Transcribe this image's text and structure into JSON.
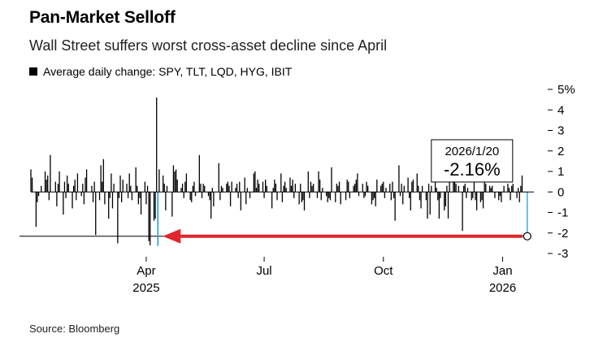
{
  "header": {
    "title": "Pan-Market Selloff",
    "subtitle": "Wall Street suffers worst cross-asset decline since April",
    "legend_label": "Average daily change: SPY, TLT, LQD, HYG, IBIT"
  },
  "footer": {
    "source": "Bloomberg"
  },
  "colors": {
    "bars": "#000000",
    "highlight": "#1e9bd7",
    "arrow": "#e0262b",
    "zero_line": "#000000"
  },
  "chart_data": {
    "type": "bar",
    "ylim": [
      -3,
      5
    ],
    "y_ticks": [
      5,
      4,
      3,
      2,
      1,
      0,
      -1,
      -2,
      -3
    ],
    "y_tick_labels": [
      "5%",
      "4",
      "3",
      "2",
      "1",
      "0",
      "-1",
      "-2",
      "-3"
    ],
    "x_range": [
      "2025-01-02",
      "2026-01-22"
    ],
    "x_ticks": [
      {
        "date": "2025-04-01",
        "label": "Apr",
        "sublabel": "2025"
      },
      {
        "date": "2025-07-01",
        "label": "Jul",
        "sublabel": ""
      },
      {
        "date": "2025-10-01",
        "label": "Oct",
        "sublabel": ""
      },
      {
        "date": "2026-01-01",
        "label": "Jan",
        "sublabel": "2026"
      }
    ],
    "bars": [
      {
        "date": "2025-01-02",
        "value": 1.1
      },
      {
        "date": "2025-01-03",
        "value": 0.7
      },
      {
        "date": "2025-01-06",
        "value": -1.7
      },
      {
        "date": "2025-01-07",
        "value": -0.5
      },
      {
        "date": "2025-01-08",
        "value": -0.2
      },
      {
        "date": "2025-01-10",
        "value": 0.3
      },
      {
        "date": "2025-01-13",
        "value": 1.0
      },
      {
        "date": "2025-01-14",
        "value": 0.6
      },
      {
        "date": "2025-01-15",
        "value": 0.8
      },
      {
        "date": "2025-01-16",
        "value": -0.4
      },
      {
        "date": "2025-01-17",
        "value": 1.8
      },
      {
        "date": "2025-01-21",
        "value": 0.5
      },
      {
        "date": "2025-01-22",
        "value": -0.7
      },
      {
        "date": "2025-01-23",
        "value": 0.4
      },
      {
        "date": "2025-01-24",
        "value": 1.0
      },
      {
        "date": "2025-01-27",
        "value": -1.1
      },
      {
        "date": "2025-01-28",
        "value": 0.5
      },
      {
        "date": "2025-01-29",
        "value": -0.3
      },
      {
        "date": "2025-01-30",
        "value": 0.8
      },
      {
        "date": "2025-01-31",
        "value": 0.4
      },
      {
        "date": "2025-02-03",
        "value": -0.8
      },
      {
        "date": "2025-02-04",
        "value": 0.3
      },
      {
        "date": "2025-02-05",
        "value": 0.6
      },
      {
        "date": "2025-02-06",
        "value": -0.4
      },
      {
        "date": "2025-02-07",
        "value": 0.9
      },
      {
        "date": "2025-02-10",
        "value": -0.2
      },
      {
        "date": "2025-02-11",
        "value": 0.4
      },
      {
        "date": "2025-02-12",
        "value": -0.6
      },
      {
        "date": "2025-02-13",
        "value": 0.7
      },
      {
        "date": "2025-02-14",
        "value": 1.1
      },
      {
        "date": "2025-02-18",
        "value": 0.3
      },
      {
        "date": "2025-02-19",
        "value": -0.5
      },
      {
        "date": "2025-02-20",
        "value": 0.5
      },
      {
        "date": "2025-02-21",
        "value": -2.1
      },
      {
        "date": "2025-02-24",
        "value": -0.4
      },
      {
        "date": "2025-02-25",
        "value": 1.3
      },
      {
        "date": "2025-02-26",
        "value": 0.5
      },
      {
        "date": "2025-02-27",
        "value": 1.6
      },
      {
        "date": "2025-02-28",
        "value": -0.6
      },
      {
        "date": "2025-03-03",
        "value": -1.3
      },
      {
        "date": "2025-03-04",
        "value": -0.3
      },
      {
        "date": "2025-03-05",
        "value": 0.9
      },
      {
        "date": "2025-03-06",
        "value": -0.8
      },
      {
        "date": "2025-03-07",
        "value": 0.4
      },
      {
        "date": "2025-03-10",
        "value": -2.5
      },
      {
        "date": "2025-03-11",
        "value": -0.3
      },
      {
        "date": "2025-03-12",
        "value": 0.8
      },
      {
        "date": "2025-03-13",
        "value": -0.5
      },
      {
        "date": "2025-03-14",
        "value": 0.6
      },
      {
        "date": "2025-03-17",
        "value": 0.4
      },
      {
        "date": "2025-03-18",
        "value": -0.3
      },
      {
        "date": "2025-03-19",
        "value": 0.9
      },
      {
        "date": "2025-03-20",
        "value": 0.3
      },
      {
        "date": "2025-03-21",
        "value": -0.4
      },
      {
        "date": "2025-03-24",
        "value": 1.2
      },
      {
        "date": "2025-03-25",
        "value": 0.3
      },
      {
        "date": "2025-03-26",
        "value": -0.6
      },
      {
        "date": "2025-03-27",
        "value": -0.3
      },
      {
        "date": "2025-03-28",
        "value": -1.1
      },
      {
        "date": "2025-03-31",
        "value": 0.5
      },
      {
        "date": "2025-04-01",
        "value": -0.6
      },
      {
        "date": "2025-04-02",
        "value": 0.3
      },
      {
        "date": "2025-04-03",
        "value": -2.4
      },
      {
        "date": "2025-04-04",
        "value": -2.6
      },
      {
        "date": "2025-04-07",
        "value": -1.4
      },
      {
        "date": "2025-04-08",
        "value": -1.3
      },
      {
        "date": "2025-04-09",
        "value": 4.6
      },
      {
        "date": "2025-04-10",
        "value": -1.9
      },
      {
        "date": "2025-04-11",
        "value": 1.1
      },
      {
        "date": "2025-04-14",
        "value": 0.8
      },
      {
        "date": "2025-04-15",
        "value": 0.4
      },
      {
        "date": "2025-04-16",
        "value": -0.9
      },
      {
        "date": "2025-04-17",
        "value": 0.3
      },
      {
        "date": "2025-04-21",
        "value": -1.2
      },
      {
        "date": "2025-04-22",
        "value": 1.3
      },
      {
        "date": "2025-04-23",
        "value": 1.0
      },
      {
        "date": "2025-04-24",
        "value": 1.1
      },
      {
        "date": "2025-04-25",
        "value": 0.6
      },
      {
        "date": "2025-04-28",
        "value": 0.2
      },
      {
        "date": "2025-04-29",
        "value": 0.4
      },
      {
        "date": "2025-04-30",
        "value": -0.3
      },
      {
        "date": "2025-05-01",
        "value": 0.5
      },
      {
        "date": "2025-05-02",
        "value": 0.9
      },
      {
        "date": "2025-05-05",
        "value": -0.4
      },
      {
        "date": "2025-05-06",
        "value": -0.5
      },
      {
        "date": "2025-05-07",
        "value": 0.3
      },
      {
        "date": "2025-05-08",
        "value": 0.5
      },
      {
        "date": "2025-05-09",
        "value": -0.2
      },
      {
        "date": "2025-05-12",
        "value": 1.8
      },
      {
        "date": "2025-05-13",
        "value": 0.4
      },
      {
        "date": "2025-05-14",
        "value": -0.3
      },
      {
        "date": "2025-05-15",
        "value": 0.4
      },
      {
        "date": "2025-05-16",
        "value": 0.3
      },
      {
        "date": "2025-05-19",
        "value": -0.2
      },
      {
        "date": "2025-05-20",
        "value": -0.4
      },
      {
        "date": "2025-05-21",
        "value": -1.3
      },
      {
        "date": "2025-05-22",
        "value": 0.2
      },
      {
        "date": "2025-05-23",
        "value": -0.7
      },
      {
        "date": "2025-05-27",
        "value": 1.4
      },
      {
        "date": "2025-05-28",
        "value": -0.4
      },
      {
        "date": "2025-05-29",
        "value": 0.3
      },
      {
        "date": "2025-05-30",
        "value": 0.2
      },
      {
        "date": "2025-06-02",
        "value": 0.4
      },
      {
        "date": "2025-06-03",
        "value": 0.5
      },
      {
        "date": "2025-06-04",
        "value": 0.3
      },
      {
        "date": "2025-06-05",
        "value": -0.7
      },
      {
        "date": "2025-06-06",
        "value": 0.5
      },
      {
        "date": "2025-06-09",
        "value": 0.2
      },
      {
        "date": "2025-06-10",
        "value": 0.4
      },
      {
        "date": "2025-06-11",
        "value": -0.3
      },
      {
        "date": "2025-06-12",
        "value": 0.5
      },
      {
        "date": "2025-06-13",
        "value": -0.9
      },
      {
        "date": "2025-06-16",
        "value": 0.7
      },
      {
        "date": "2025-06-17",
        "value": -0.6
      },
      {
        "date": "2025-06-18",
        "value": 0.2
      },
      {
        "date": "2025-06-20",
        "value": -0.3
      },
      {
        "date": "2025-06-23",
        "value": 0.9
      },
      {
        "date": "2025-06-24",
        "value": 1.0
      },
      {
        "date": "2025-06-25",
        "value": 0.2
      },
      {
        "date": "2025-06-26",
        "value": 0.6
      },
      {
        "date": "2025-06-27",
        "value": 0.4
      },
      {
        "date": "2025-06-30",
        "value": 0.5
      },
      {
        "date": "2025-07-01",
        "value": -0.3
      },
      {
        "date": "2025-07-02",
        "value": 0.6
      },
      {
        "date": "2025-07-03",
        "value": 0.3
      },
      {
        "date": "2025-07-07",
        "value": -0.8
      },
      {
        "date": "2025-07-08",
        "value": 0.2
      },
      {
        "date": "2025-07-09",
        "value": 0.6
      },
      {
        "date": "2025-07-10",
        "value": 0.4
      },
      {
        "date": "2025-07-11",
        "value": -0.4
      },
      {
        "date": "2025-07-14",
        "value": 0.9
      },
      {
        "date": "2025-07-15",
        "value": -0.5
      },
      {
        "date": "2025-07-16",
        "value": 0.3
      },
      {
        "date": "2025-07-17",
        "value": 0.5
      },
      {
        "date": "2025-07-18",
        "value": 0.2
      },
      {
        "date": "2025-07-21",
        "value": 0.7
      },
      {
        "date": "2025-07-22",
        "value": 0.3
      },
      {
        "date": "2025-07-23",
        "value": 0.6
      },
      {
        "date": "2025-07-24",
        "value": -0.3
      },
      {
        "date": "2025-07-25",
        "value": 0.4
      },
      {
        "date": "2025-07-28",
        "value": -0.6
      },
      {
        "date": "2025-07-29",
        "value": 0.4
      },
      {
        "date": "2025-07-30",
        "value": -0.5
      },
      {
        "date": "2025-07-31",
        "value": -0.4
      },
      {
        "date": "2025-08-01",
        "value": -0.9
      },
      {
        "date": "2025-08-04",
        "value": 1.0
      },
      {
        "date": "2025-08-05",
        "value": -0.3
      },
      {
        "date": "2025-08-06",
        "value": 0.5
      },
      {
        "date": "2025-08-07",
        "value": 0.3
      },
      {
        "date": "2025-08-08",
        "value": 0.4
      },
      {
        "date": "2025-08-11",
        "value": -0.3
      },
      {
        "date": "2025-08-12",
        "value": 1.0
      },
      {
        "date": "2025-08-13",
        "value": 0.6
      },
      {
        "date": "2025-08-14",
        "value": -0.4
      },
      {
        "date": "2025-08-15",
        "value": 0.2
      },
      {
        "date": "2025-08-18",
        "value": -0.2
      },
      {
        "date": "2025-08-19",
        "value": -0.5
      },
      {
        "date": "2025-08-20",
        "value": -0.3
      },
      {
        "date": "2025-08-21",
        "value": -0.4
      },
      {
        "date": "2025-08-22",
        "value": 1.2
      },
      {
        "date": "2025-08-25",
        "value": -0.5
      },
      {
        "date": "2025-08-26",
        "value": 0.4
      },
      {
        "date": "2025-08-27",
        "value": 0.3
      },
      {
        "date": "2025-08-28",
        "value": 0.5
      },
      {
        "date": "2025-08-29",
        "value": -0.6
      },
      {
        "date": "2025-09-02",
        "value": -0.4
      },
      {
        "date": "2025-09-03",
        "value": 0.6
      },
      {
        "date": "2025-09-04",
        "value": 0.5
      },
      {
        "date": "2025-09-05",
        "value": -0.3
      },
      {
        "date": "2025-09-08",
        "value": 0.3
      },
      {
        "date": "2025-09-09",
        "value": 0.4
      },
      {
        "date": "2025-09-10",
        "value": 0.6
      },
      {
        "date": "2025-09-11",
        "value": 0.9
      },
      {
        "date": "2025-09-12",
        "value": -0.2
      },
      {
        "date": "2025-09-15",
        "value": 0.4
      },
      {
        "date": "2025-09-16",
        "value": -0.3
      },
      {
        "date": "2025-09-17",
        "value": -0.2
      },
      {
        "date": "2025-09-18",
        "value": 0.5
      },
      {
        "date": "2025-09-19",
        "value": 0.3
      },
      {
        "date": "2025-09-22",
        "value": -0.6
      },
      {
        "date": "2025-09-23",
        "value": -0.4
      },
      {
        "date": "2025-09-24",
        "value": -0.3
      },
      {
        "date": "2025-09-25",
        "value": -0.7
      },
      {
        "date": "2025-09-26",
        "value": 0.6
      },
      {
        "date": "2025-09-29",
        "value": 0.3
      },
      {
        "date": "2025-09-30",
        "value": 0.4
      },
      {
        "date": "2025-10-01",
        "value": 0.5
      },
      {
        "date": "2025-10-02",
        "value": -0.3
      },
      {
        "date": "2025-10-03",
        "value": 0.2
      },
      {
        "date": "2025-10-06",
        "value": 0.4
      },
      {
        "date": "2025-10-07",
        "value": -0.4
      },
      {
        "date": "2025-10-08",
        "value": 0.5
      },
      {
        "date": "2025-10-09",
        "value": -0.3
      },
      {
        "date": "2025-10-10",
        "value": -1.4
      },
      {
        "date": "2025-10-13",
        "value": 1.3
      },
      {
        "date": "2025-10-14",
        "value": -0.2
      },
      {
        "date": "2025-10-15",
        "value": 0.4
      },
      {
        "date": "2025-10-16",
        "value": -0.6
      },
      {
        "date": "2025-10-17",
        "value": 0.3
      },
      {
        "date": "2025-10-20",
        "value": 0.7
      },
      {
        "date": "2025-10-21",
        "value": -0.3
      },
      {
        "date": "2025-10-22",
        "value": -0.9
      },
      {
        "date": "2025-10-23",
        "value": 0.5
      },
      {
        "date": "2025-10-24",
        "value": 0.6
      },
      {
        "date": "2025-10-27",
        "value": 0.9
      },
      {
        "date": "2025-10-28",
        "value": 0.3
      },
      {
        "date": "2025-10-29",
        "value": -0.4
      },
      {
        "date": "2025-10-30",
        "value": -0.8
      },
      {
        "date": "2025-10-31",
        "value": 0.3
      },
      {
        "date": "2025-11-03",
        "value": -0.4
      },
      {
        "date": "2025-11-04",
        "value": -1.3
      },
      {
        "date": "2025-11-05",
        "value": 0.4
      },
      {
        "date": "2025-11-06",
        "value": -1.1
      },
      {
        "date": "2025-11-07",
        "value": 0.3
      },
      {
        "date": "2025-11-10",
        "value": 0.9
      },
      {
        "date": "2025-11-11",
        "value": 0.2
      },
      {
        "date": "2025-11-12",
        "value": -0.4
      },
      {
        "date": "2025-11-13",
        "value": -1.3
      },
      {
        "date": "2025-11-14",
        "value": -0.3
      },
      {
        "date": "2025-11-17",
        "value": -0.9
      },
      {
        "date": "2025-11-18",
        "value": -0.7
      },
      {
        "date": "2025-11-19",
        "value": 0.3
      },
      {
        "date": "2025-11-20",
        "value": -1.3
      },
      {
        "date": "2025-11-21",
        "value": 0.8
      },
      {
        "date": "2025-11-24",
        "value": 0.7
      },
      {
        "date": "2025-11-25",
        "value": 0.5
      },
      {
        "date": "2025-11-26",
        "value": 0.4
      },
      {
        "date": "2025-11-28",
        "value": 0.3
      },
      {
        "date": "2025-12-01",
        "value": -1.9
      },
      {
        "date": "2025-12-02",
        "value": 0.3
      },
      {
        "date": "2025-12-03",
        "value": 0.4
      },
      {
        "date": "2025-12-04",
        "value": -0.3
      },
      {
        "date": "2025-12-05",
        "value": 0.2
      },
      {
        "date": "2025-12-08",
        "value": -0.4
      },
      {
        "date": "2025-12-09",
        "value": -0.3
      },
      {
        "date": "2025-12-10",
        "value": 0.5
      },
      {
        "date": "2025-12-11",
        "value": -0.4
      },
      {
        "date": "2025-12-12",
        "value": -0.9
      },
      {
        "date": "2025-12-15",
        "value": -0.5
      },
      {
        "date": "2025-12-16",
        "value": -0.4
      },
      {
        "date": "2025-12-17",
        "value": -0.8
      },
      {
        "date": "2025-12-18",
        "value": 0.5
      },
      {
        "date": "2025-12-19",
        "value": 0.4
      },
      {
        "date": "2025-12-22",
        "value": 0.3
      },
      {
        "date": "2025-12-23",
        "value": 0.2
      },
      {
        "date": "2025-12-24",
        "value": 0.3
      },
      {
        "date": "2025-12-26",
        "value": -0.3
      },
      {
        "date": "2025-12-29",
        "value": -0.4
      },
      {
        "date": "2025-12-30",
        "value": -0.2
      },
      {
        "date": "2025-12-31",
        "value": -0.5
      },
      {
        "date": "2026-01-02",
        "value": 0.3
      },
      {
        "date": "2026-01-05",
        "value": 0.4
      },
      {
        "date": "2026-01-06",
        "value": 0.2
      },
      {
        "date": "2026-01-07",
        "value": -0.4
      },
      {
        "date": "2026-01-08",
        "value": 0.3
      },
      {
        "date": "2026-01-09",
        "value": 0.4
      },
      {
        "date": "2026-01-12",
        "value": -0.3
      },
      {
        "date": "2026-01-13",
        "value": 0.2
      },
      {
        "date": "2026-01-14",
        "value": -0.5
      },
      {
        "date": "2026-01-15",
        "value": 0.3
      },
      {
        "date": "2026-01-16",
        "value": 0.8
      },
      {
        "date": "2026-01-20",
        "value": -2.16
      }
    ],
    "callout": {
      "date": "2026-01-20",
      "value": -2.16,
      "date_label": "2026/1/20",
      "value_label": "-2.16%"
    },
    "annotation": {
      "reference_value": -2.16,
      "reference_start": "2025-01-02",
      "arrow_target_date": "2025-04-10"
    }
  }
}
